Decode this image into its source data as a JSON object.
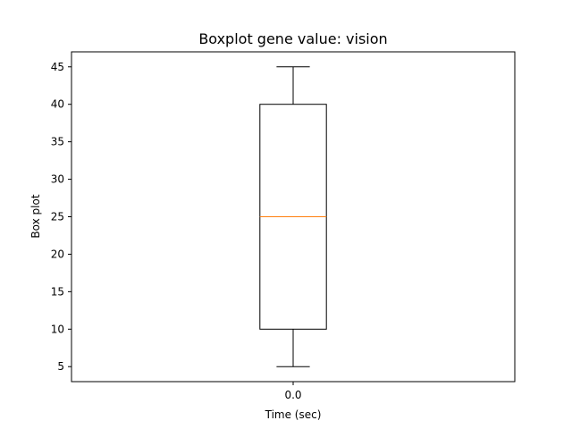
{
  "chart_data": {
    "type": "box",
    "title": "Boxplot gene value: vision",
    "xlabel": "Time (sec)",
    "ylabel": "Box plot",
    "categories": [
      "0.0"
    ],
    "boxes": [
      {
        "category": "0.0",
        "whisker_low": 5,
        "q1": 10,
        "median": 25,
        "q3": 40,
        "whisker_high": 45
      }
    ],
    "ylim": [
      3,
      47
    ],
    "yticks": [
      5,
      10,
      15,
      20,
      25,
      30,
      35,
      40,
      45
    ],
    "grid": false,
    "colors": {
      "box": "#000000",
      "median": "#ff7f0e",
      "axes": "#000000",
      "background": "#ffffff"
    }
  }
}
